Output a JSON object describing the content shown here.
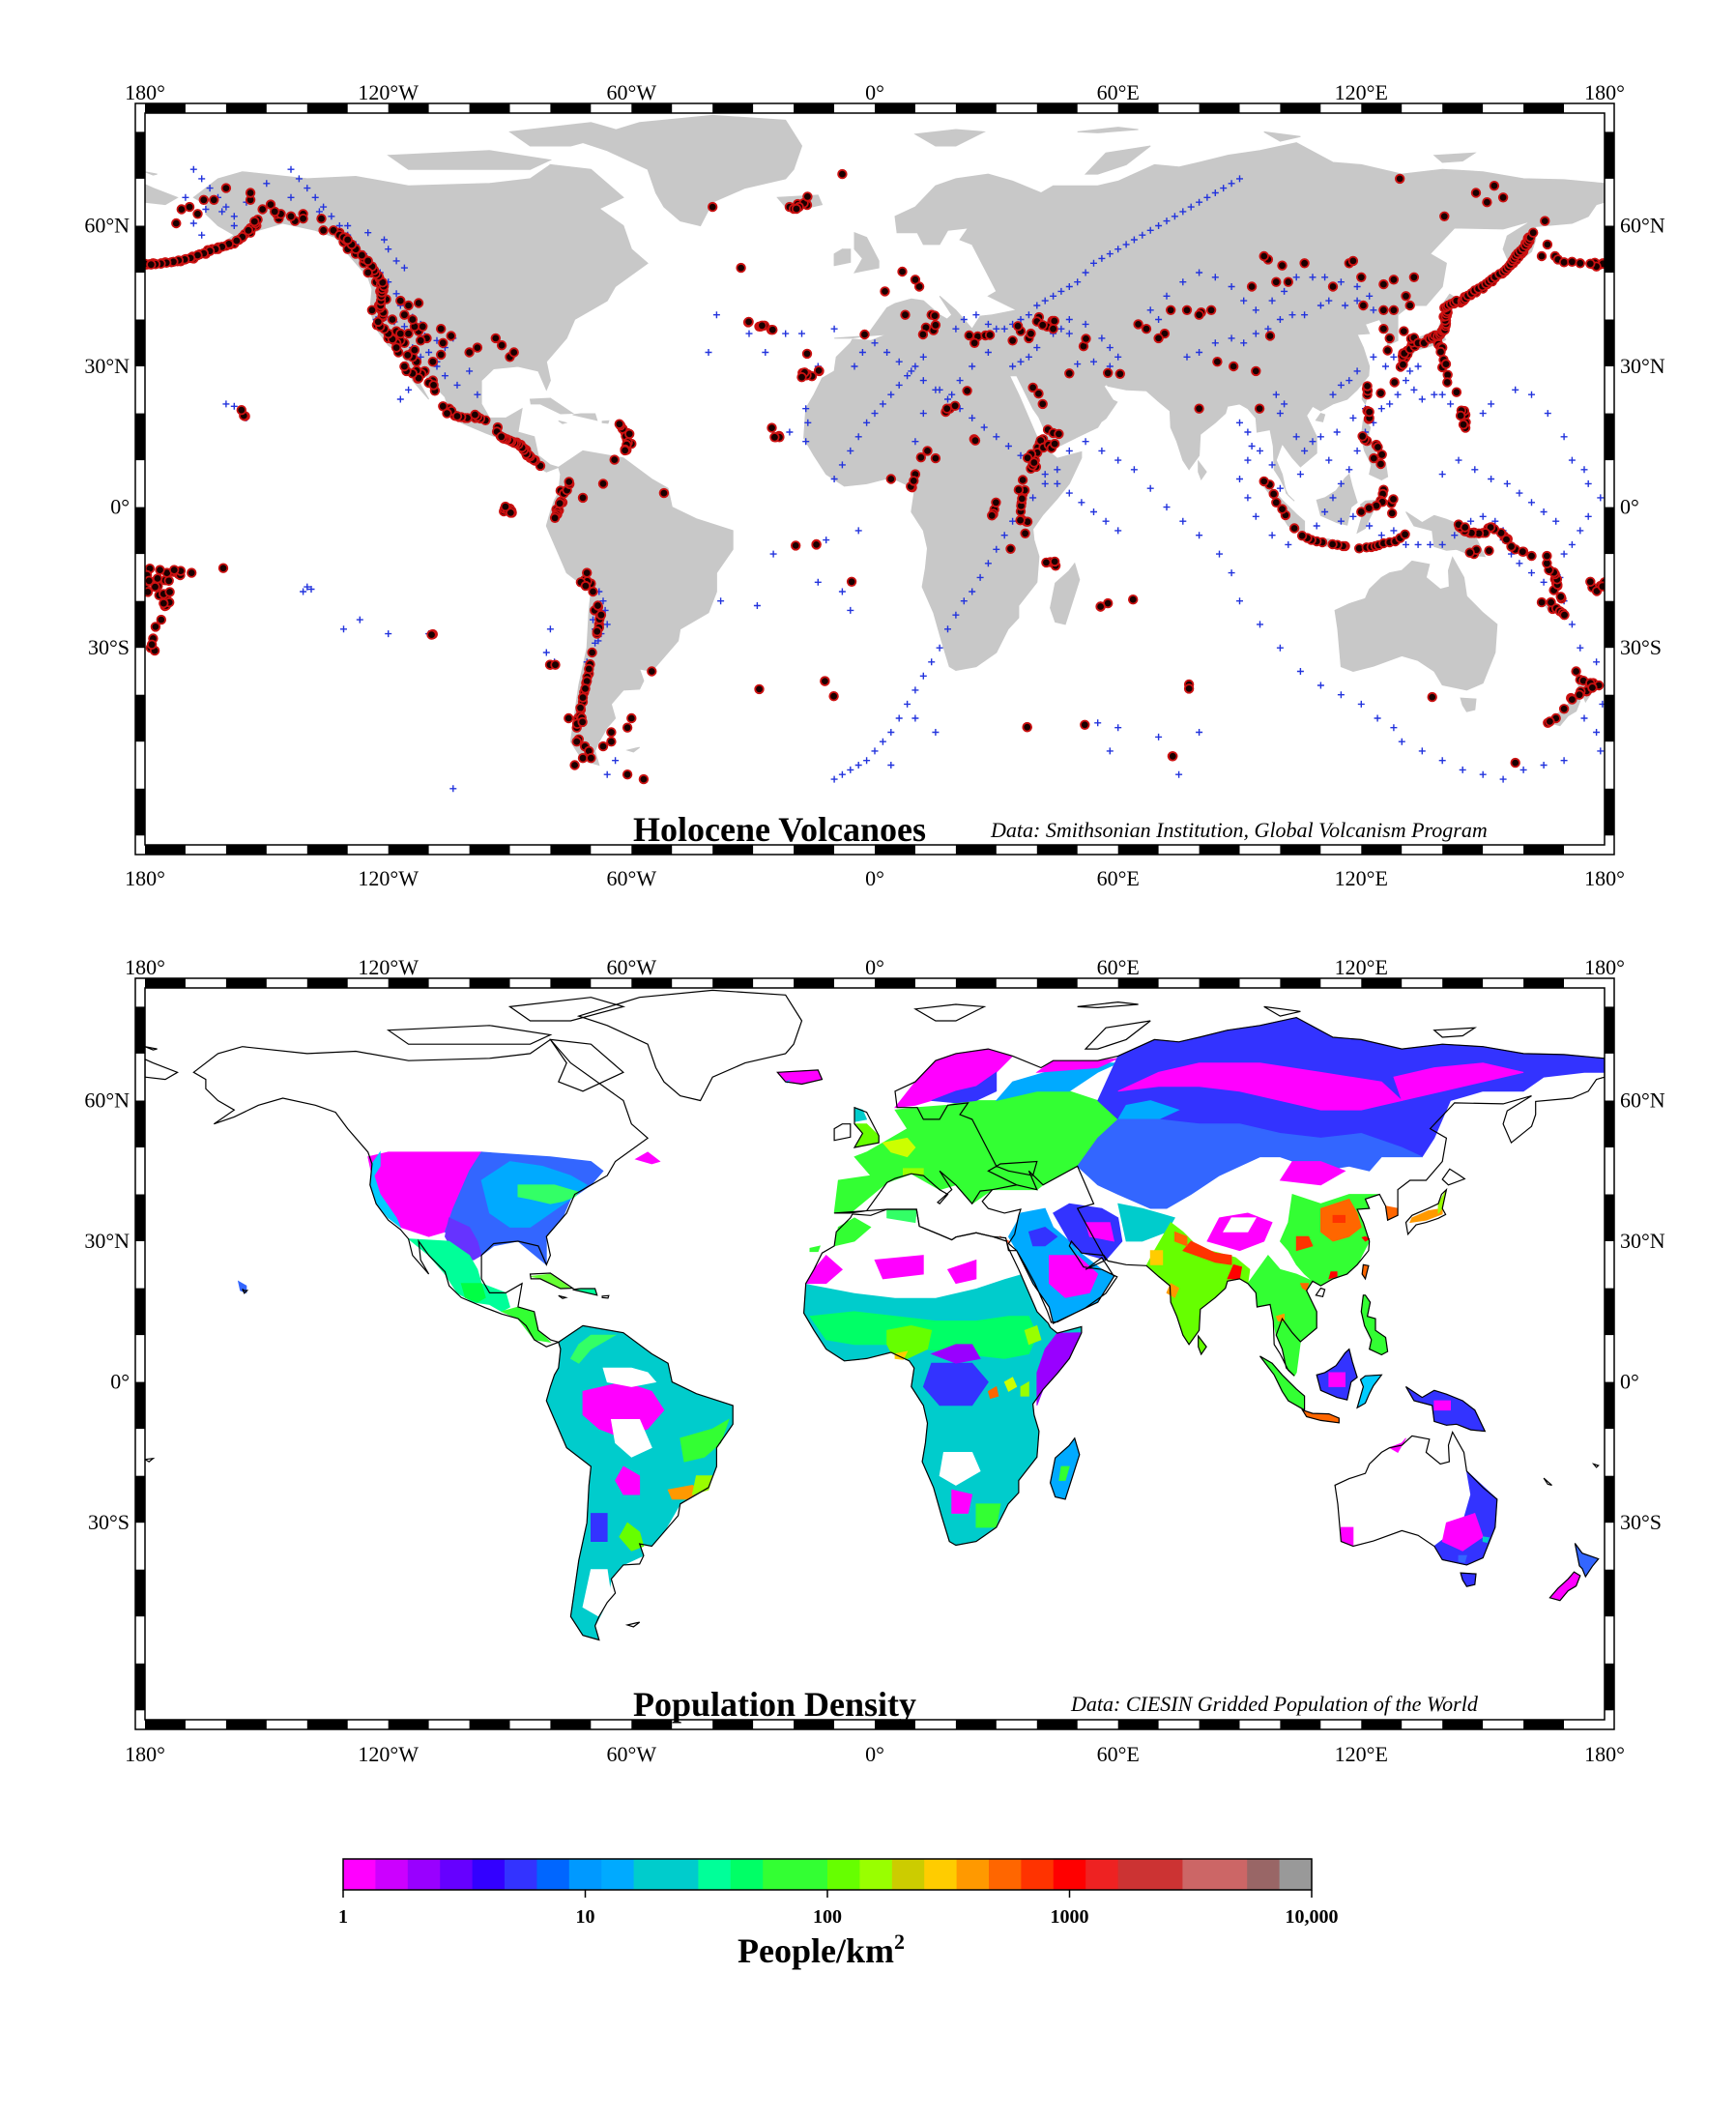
{
  "graticule": {
    "lon_labels": [
      "180°",
      "120°W",
      "60°W",
      "0°",
      "60°E",
      "120°E",
      "180°"
    ],
    "lat_labels": [
      "60°N",
      "30°N",
      "0°",
      "30°S"
    ]
  },
  "volcano_map": {
    "title": "Holocene Volcanoes",
    "credit": "Data: Smithsonian Institution, Global Volcanism Program",
    "land_color": "#c8c8c8",
    "holocene_marker_color": "#cc1111",
    "other_marker_color": "#2233dd"
  },
  "population_map": {
    "title": "Population Density",
    "credit": "Data: CIESIN Gridded Population of the World"
  },
  "colorbar": {
    "unit_main": "People/km",
    "unit_sup": "2",
    "tick_labels": [
      "1",
      "10",
      "100",
      "1000",
      "10,000"
    ],
    "scale": "log",
    "range": [
      1,
      10000
    ],
    "colors": [
      "#ff00ff",
      "#cc00ff",
      "#9900ff",
      "#6600ff",
      "#3300ff",
      "#3333ff",
      "#0066ff",
      "#0099ff",
      "#00aaff",
      "#00cccc",
      "#00cccc",
      "#00ff99",
      "#00ff66",
      "#33ff33",
      "#33ff33",
      "#66ff00",
      "#99ff00",
      "#cccc00",
      "#ffcc00",
      "#ff9900",
      "#ff6600",
      "#ff3300",
      "#ff0000",
      "#ee2222",
      "#cc3333",
      "#cc3333",
      "#cc6666",
      "#cc6666",
      "#996666",
      "#999999"
    ]
  }
}
